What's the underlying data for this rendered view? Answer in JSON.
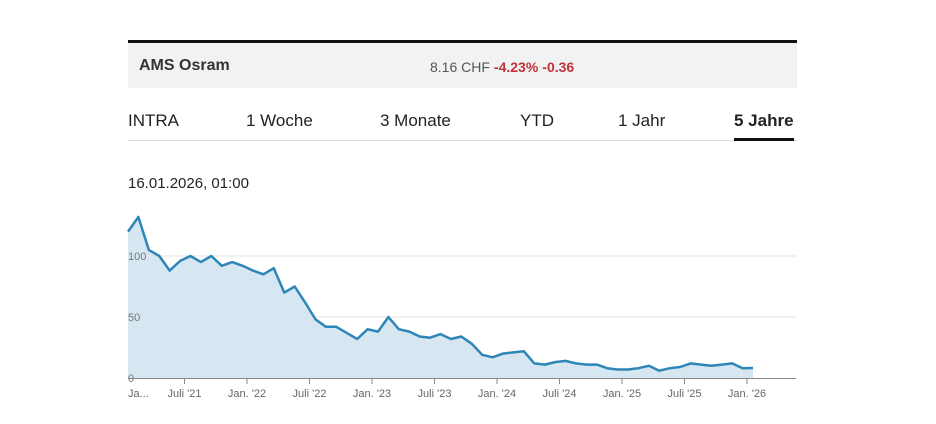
{
  "header": {
    "name": "AMS Osram",
    "price": "8.16 CHF",
    "change_pct": "-4.23%",
    "change_abs": "-0.36",
    "neg_color": "#c0323a"
  },
  "tabs": [
    {
      "label": "INTRA"
    },
    {
      "label": "1 Woche"
    },
    {
      "label": "3 Monate"
    },
    {
      "label": "YTD"
    },
    {
      "label": "1 Jahr"
    },
    {
      "label": "5 Jahre",
      "active": true
    }
  ],
  "date_label": "16.01.2026, 01:00",
  "chart_data": {
    "type": "area",
    "title": "",
    "xlabel": "",
    "ylabel": "",
    "ylim": [
      0,
      130
    ],
    "grid": true,
    "yticks": [
      0,
      50,
      100
    ],
    "xticks": [
      "Ja...",
      "Juli '21",
      "Jan. '22",
      "Juli '22",
      "Jan. '23",
      "Juli '23",
      "Jan. '24",
      "Juli '24",
      "Jan. '25",
      "Juli '25",
      "Jan. '26"
    ],
    "x_start": "2021-01",
    "line_color": "#2e86b8",
    "fill_color": "#d6e7f1",
    "series": [
      {
        "name": "AMS Osram",
        "values": [
          120,
          132,
          105,
          100,
          88,
          96,
          100,
          95,
          100,
          92,
          95,
          92,
          88,
          85,
          90,
          70,
          75,
          62,
          48,
          42,
          42,
          37,
          32,
          40,
          38,
          50,
          40,
          38,
          34,
          33,
          36,
          32,
          34,
          28,
          19,
          17,
          20,
          21,
          22,
          12,
          11,
          13,
          14,
          12,
          11,
          11,
          8,
          7,
          7,
          8,
          10,
          6,
          8,
          9,
          12,
          11,
          10,
          11,
          12,
          8,
          8.16
        ]
      }
    ]
  }
}
